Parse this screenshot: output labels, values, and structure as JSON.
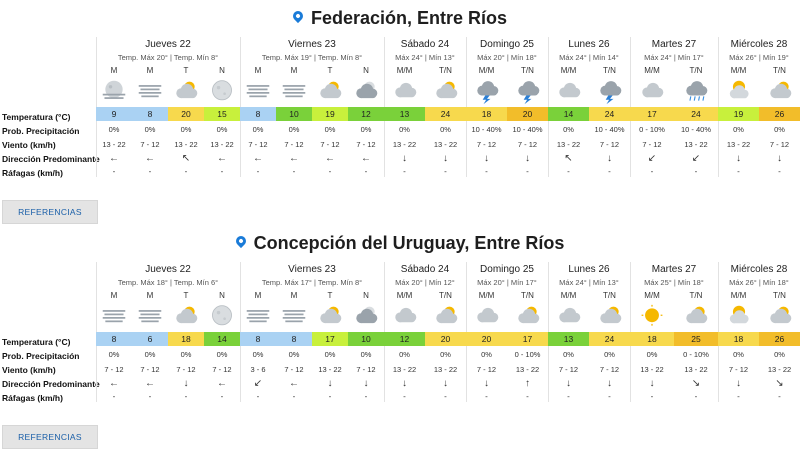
{
  "colors": {
    "accent": "#1a7bd8",
    "cold": "#aad2f3",
    "cool": "#c8f03c",
    "mild": "#7ad13a",
    "warm": "#f7d94d",
    "hot": "#f2bd2a"
  },
  "row_labels": [
    "Temperatura (°C)",
    "Prob. Precipitación",
    "Viento (km/h)",
    "Dirección Predominante",
    "Ráfagas (km/h)"
  ],
  "button_label": "REFERENCIAS",
  "locations": [
    {
      "title": "Federación, Entre Ríos",
      "days": [
        {
          "name": "Jueves 22",
          "tmax": "Temp. Máx 20° | Temp. Mín 8°",
          "slots": [
            {
              "period": "M",
              "icon": "fog-moon-icon",
              "temp": "9",
              "tc": "cold",
              "prob": "0%",
              "wind": "13 - 22",
              "dir": "←",
              "gust": "-"
            },
            {
              "period": "M",
              "icon": "fog-icon",
              "temp": "8",
              "tc": "cold",
              "prob": "0%",
              "wind": "7 - 12",
              "dir": "←",
              "gust": "-"
            },
            {
              "period": "T",
              "icon": "partly-cloudy-icon",
              "temp": "20",
              "tc": "warm",
              "prob": "0%",
              "wind": "13 - 22",
              "dir": "↖",
              "gust": "-"
            },
            {
              "period": "N",
              "icon": "clear-night-icon",
              "temp": "15",
              "tc": "cool",
              "prob": "0%",
              "wind": "13 - 22",
              "dir": "←",
              "gust": "-"
            }
          ]
        },
        {
          "name": "Viernes 23",
          "tmax": "Temp. Máx 19° | Temp. Mín 8°",
          "slots": [
            {
              "period": "M",
              "icon": "fog-icon",
              "temp": "8",
              "tc": "cold",
              "prob": "0%",
              "wind": "7 - 12",
              "dir": "←",
              "gust": "-"
            },
            {
              "period": "M",
              "icon": "fog-icon",
              "temp": "10",
              "tc": "mild",
              "prob": "0%",
              "wind": "7 - 12",
              "dir": "←",
              "gust": "-"
            },
            {
              "period": "T",
              "icon": "partly-cloudy-icon",
              "temp": "19",
              "tc": "cool",
              "prob": "0%",
              "wind": "7 - 12",
              "dir": "←",
              "gust": "-"
            },
            {
              "period": "N",
              "icon": "cloudy-night-icon",
              "temp": "12",
              "tc": "mild",
              "prob": "0%",
              "wind": "7 - 12",
              "dir": "←",
              "gust": "-"
            }
          ]
        },
        {
          "name": "Sábado 24",
          "tmax": "Máx 24° | Mín 13°",
          "slots": [
            {
              "period": "M/M",
              "icon": "cloudy-icon",
              "temp": "13",
              "tc": "mild",
              "prob": "0%",
              "wind": "13 - 22",
              "dir": "↓",
              "gust": "-"
            },
            {
              "period": "T/N",
              "icon": "partly-cloudy-icon",
              "temp": "24",
              "tc": "warm",
              "prob": "0%",
              "wind": "13 - 22",
              "dir": "↓",
              "gust": "-"
            }
          ]
        },
        {
          "name": "Domingo 25",
          "tmax": "Máx 20° | Mín 18°",
          "slots": [
            {
              "period": "M/M",
              "icon": "storm-icon",
              "temp": "18",
              "tc": "warm",
              "prob": "10 - 40%",
              "wind": "7 - 12",
              "dir": "↓",
              "gust": "-"
            },
            {
              "period": "T/N",
              "icon": "storm-icon",
              "temp": "20",
              "tc": "hot",
              "prob": "10 - 40%",
              "wind": "7 - 12",
              "dir": "↓",
              "gust": "-"
            }
          ]
        },
        {
          "name": "Lunes 26",
          "tmax": "Máx 24° | Mín 14°",
          "slots": [
            {
              "period": "M/M",
              "icon": "cloudy-icon",
              "temp": "14",
              "tc": "mild",
              "prob": "0%",
              "wind": "13 - 22",
              "dir": "↖",
              "gust": "-"
            },
            {
              "period": "T/N",
              "icon": "storm-icon",
              "temp": "24",
              "tc": "warm",
              "prob": "10 - 40%",
              "wind": "7 - 12",
              "dir": "↓",
              "gust": "-"
            }
          ]
        },
        {
          "name": "Martes 27",
          "tmax": "Máx 24° | Mín 17°",
          "slots": [
            {
              "period": "M/M",
              "icon": "cloudy-icon",
              "temp": "17",
              "tc": "warm",
              "prob": "0 - 10%",
              "wind": "7 - 12",
              "dir": "↙",
              "gust": "-"
            },
            {
              "period": "T/N",
              "icon": "rain-icon",
              "temp": "24",
              "tc": "warm",
              "prob": "10 - 40%",
              "wind": "13 - 22",
              "dir": "↙",
              "gust": "-"
            }
          ]
        },
        {
          "name": "Miércoles 28",
          "tmax": "Máx 26° | Mín 19°",
          "slots": [
            {
              "period": "M/M",
              "icon": "sunny-cloud-icon",
              "temp": "19",
              "tc": "cool",
              "prob": "0%",
              "wind": "13 - 22",
              "dir": "↓",
              "gust": "-"
            },
            {
              "period": "T/N",
              "icon": "partly-cloudy-icon",
              "temp": "26",
              "tc": "hot",
              "prob": "0%",
              "wind": "7 - 12",
              "dir": "↓",
              "gust": "-"
            }
          ]
        }
      ]
    },
    {
      "title": "Concepción del Uruguay, Entre Ríos",
      "days": [
        {
          "name": "Jueves 22",
          "tmax": "Temp. Máx 18° | Temp. Mín 6°",
          "slots": [
            {
              "period": "M",
              "icon": "fog-icon",
              "temp": "8",
              "tc": "cold",
              "prob": "0%",
              "wind": "7 - 12",
              "dir": "←",
              "gust": "-"
            },
            {
              "period": "M",
              "icon": "fog-icon",
              "temp": "6",
              "tc": "cold",
              "prob": "0%",
              "wind": "7 - 12",
              "dir": "←",
              "gust": "-"
            },
            {
              "period": "T",
              "icon": "partly-cloudy-icon",
              "temp": "18",
              "tc": "warm",
              "prob": "0%",
              "wind": "7 - 12",
              "dir": "↓",
              "gust": "-"
            },
            {
              "period": "N",
              "icon": "clear-night-icon",
              "temp": "14",
              "tc": "mild",
              "prob": "0%",
              "wind": "7 - 12",
              "dir": "←",
              "gust": "-"
            }
          ]
        },
        {
          "name": "Viernes 23",
          "tmax": "Temp. Máx 17° | Temp. Mín 8°",
          "slots": [
            {
              "period": "M",
              "icon": "fog-icon",
              "temp": "8",
              "tc": "cold",
              "prob": "0%",
              "wind": "3 - 6",
              "dir": "↙",
              "gust": "-"
            },
            {
              "period": "M",
              "icon": "fog-icon",
              "temp": "8",
              "tc": "cold",
              "prob": "0%",
              "wind": "7 - 12",
              "dir": "←",
              "gust": "-"
            },
            {
              "period": "T",
              "icon": "partly-cloudy-icon",
              "temp": "17",
              "tc": "cool",
              "prob": "0%",
              "wind": "13 - 22",
              "dir": "↓",
              "gust": "-"
            },
            {
              "period": "N",
              "icon": "cloudy-night-icon",
              "temp": "10",
              "tc": "mild",
              "prob": "0%",
              "wind": "7 - 12",
              "dir": "↓",
              "gust": "-"
            }
          ]
        },
        {
          "name": "Sábado 24",
          "tmax": "Máx 20° | Mín 12°",
          "slots": [
            {
              "period": "M/M",
              "icon": "cloudy-icon",
              "temp": "12",
              "tc": "mild",
              "prob": "0%",
              "wind": "13 - 22",
              "dir": "↓",
              "gust": "-"
            },
            {
              "period": "T/N",
              "icon": "partly-cloudy-icon",
              "temp": "20",
              "tc": "warm",
              "prob": "0%",
              "wind": "13 - 22",
              "dir": "↓",
              "gust": "-"
            }
          ]
        },
        {
          "name": "Domingo 25",
          "tmax": "Máx 20° | Mín 17°",
          "slots": [
            {
              "period": "M/M",
              "icon": "cloudy-icon",
              "temp": "20",
              "tc": "warm",
              "prob": "0%",
              "wind": "7 - 12",
              "dir": "↓",
              "gust": "-"
            },
            {
              "period": "T/N",
              "icon": "partly-cloudy-icon",
              "temp": "17",
              "tc": "warm",
              "prob": "0 - 10%",
              "wind": "13 - 22",
              "dir": "↑",
              "gust": "-"
            }
          ]
        },
        {
          "name": "Lunes 26",
          "tmax": "Máx 24° | Mín 13°",
          "slots": [
            {
              "period": "M/M",
              "icon": "cloudy-icon",
              "temp": "13",
              "tc": "mild",
              "prob": "0%",
              "wind": "7 - 12",
              "dir": "↓",
              "gust": "-"
            },
            {
              "period": "T/N",
              "icon": "partly-cloudy-icon",
              "temp": "24",
              "tc": "warm",
              "prob": "0%",
              "wind": "7 - 12",
              "dir": "↓",
              "gust": "-"
            }
          ]
        },
        {
          "name": "Martes 27",
          "tmax": "Máx 25° | Mín 18°",
          "slots": [
            {
              "period": "M/M",
              "icon": "sun-icon",
              "temp": "18",
              "tc": "warm",
              "prob": "0%",
              "wind": "13 - 22",
              "dir": "↓",
              "gust": "-"
            },
            {
              "period": "T/N",
              "icon": "partly-cloudy-icon",
              "temp": "25",
              "tc": "hot",
              "prob": "0 - 10%",
              "wind": "13 - 22",
              "dir": "↘",
              "gust": "-"
            }
          ]
        },
        {
          "name": "Miércoles 28",
          "tmax": "Máx 26° | Mín 18°",
          "slots": [
            {
              "period": "M/M",
              "icon": "sunny-cloud-icon",
              "temp": "18",
              "tc": "warm",
              "prob": "0%",
              "wind": "7 - 12",
              "dir": "↓",
              "gust": "-"
            },
            {
              "period": "T/N",
              "icon": "partly-cloudy-icon",
              "temp": "26",
              "tc": "hot",
              "prob": "0%",
              "wind": "13 - 22",
              "dir": "↘",
              "gust": "-"
            }
          ]
        }
      ]
    }
  ]
}
